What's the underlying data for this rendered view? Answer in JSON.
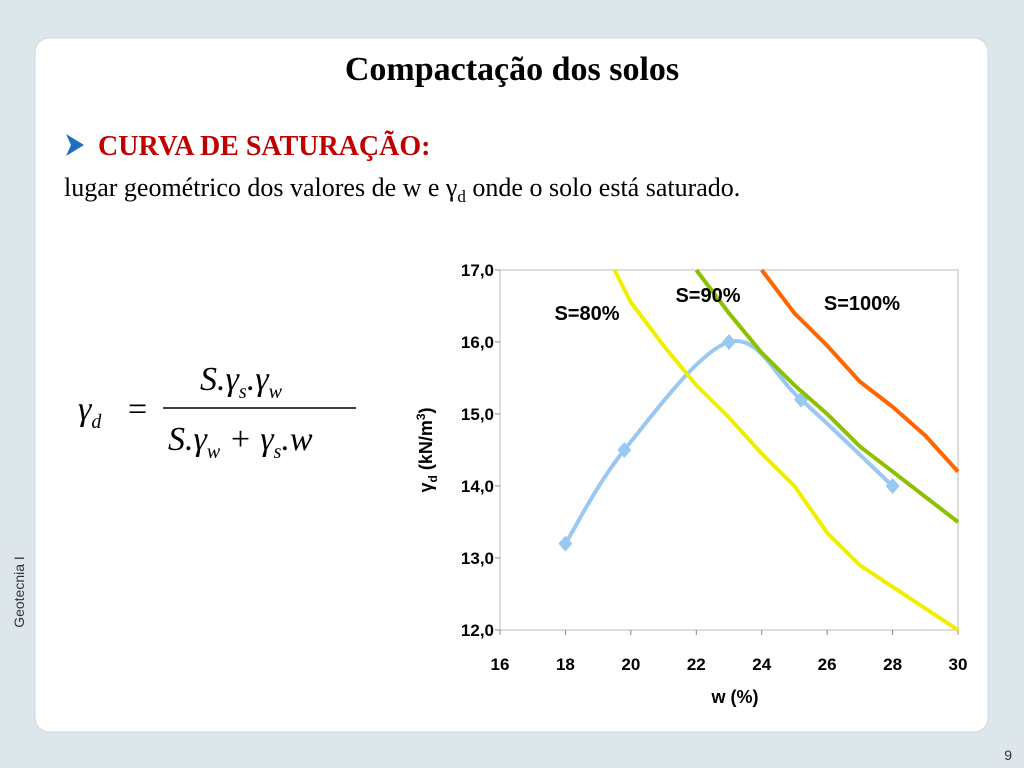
{
  "header": {
    "title": "Compactação dos solos"
  },
  "bullet": {
    "heading": "CURVA DE SATURAÇÃO:",
    "text": [
      "lugar geométrico dos valores de w e γ",
      "d",
      " onde o solo está saturado."
    ]
  },
  "formula": {
    "lhs": "γ",
    "lhs_sub": "d",
    "equals": "=",
    "numerator": [
      "S.γ",
      "s",
      ".γ",
      "w"
    ],
    "denominator": [
      "S.γ",
      "w",
      " + γ",
      "s",
      ".w"
    ]
  },
  "sidebar": "Geotecnia I",
  "page_number": "9",
  "chart_data": {
    "type": "line",
    "xlabel": "w (%)",
    "ylabel": [
      "γ",
      "d",
      " (kN/m",
      "3",
      ")"
    ],
    "xlim": [
      16,
      30
    ],
    "xticks": [
      16,
      18,
      20,
      22,
      24,
      26,
      28,
      30
    ],
    "ylim": [
      12,
      17
    ],
    "yticks": [
      {
        "value": 12,
        "label": "12,0"
      },
      {
        "value": 13,
        "label": "13,0"
      },
      {
        "value": 14,
        "label": "14,0"
      },
      {
        "value": 15,
        "label": "15,0"
      },
      {
        "value": 16,
        "label": "16,0"
      },
      {
        "value": 17,
        "label": "17,0"
      }
    ],
    "series": [
      {
        "color": "#99c8f2",
        "marker": "diamond",
        "smooth": true,
        "x": [
          18,
          19.8,
          23,
          25.2,
          28
        ],
        "values": [
          13.2,
          14.5,
          16.0,
          15.2,
          14.0
        ]
      },
      {
        "name": "S=80%",
        "color": "#f2ee00",
        "x": [
          19.5,
          20,
          21,
          22,
          23,
          24,
          25,
          26,
          27,
          28,
          29,
          30
        ],
        "values": [
          17.0,
          16.55,
          15.95,
          15.4,
          14.95,
          14.45,
          14.0,
          13.35,
          12.9,
          12.6,
          12.3,
          12.0
        ]
      },
      {
        "name": "S=90%",
        "color": "#8cc000",
        "x": [
          22,
          23,
          24,
          25,
          26,
          27,
          28,
          29,
          30
        ],
        "values": [
          17.0,
          16.4,
          15.85,
          15.4,
          15.0,
          14.55,
          14.2,
          13.85,
          13.5
        ]
      },
      {
        "name": "S=100%",
        "color": "#ff6600",
        "x": [
          24,
          25,
          26,
          27,
          28,
          29,
          30
        ],
        "values": [
          17.0,
          16.4,
          15.95,
          15.45,
          15.1,
          14.7,
          14.2
        ]
      }
    ]
  }
}
